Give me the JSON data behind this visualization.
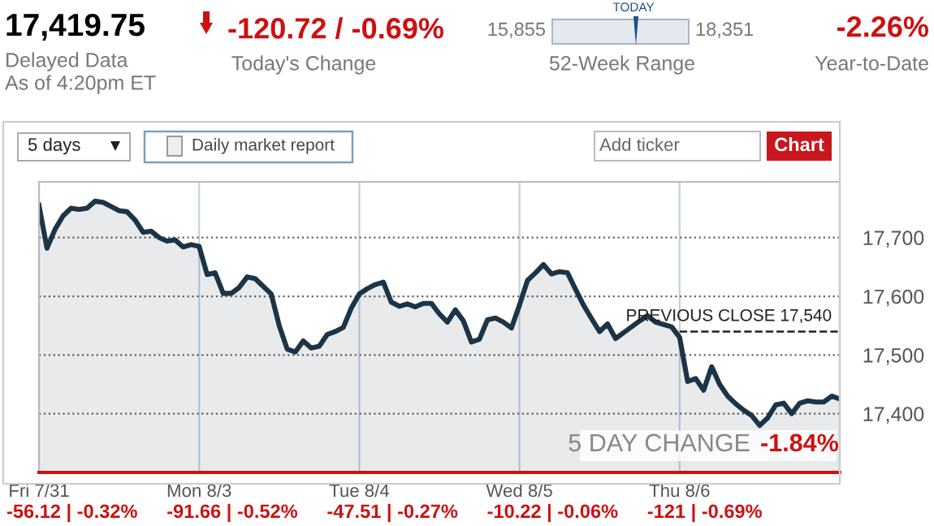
{
  "chart_data": {
    "type": "area",
    "title": "17,419.75",
    "categories": [
      "Fri 7/31",
      null,
      null,
      null,
      null,
      null,
      null,
      null,
      null,
      null,
      null,
      null,
      null,
      null,
      null,
      null,
      null,
      null,
      null,
      null,
      "Mon 8/3",
      null,
      null,
      null,
      null,
      null,
      null,
      null,
      null,
      null,
      null,
      null,
      null,
      null,
      null,
      null,
      null,
      null,
      null,
      null,
      "Tue 8/4",
      null,
      null,
      null,
      null,
      null,
      null,
      null,
      null,
      null,
      null,
      null,
      null,
      null,
      null,
      null,
      null,
      null,
      null,
      null,
      "Wed 8/5",
      null,
      null,
      null,
      null,
      null,
      null,
      null,
      null,
      null,
      null,
      null,
      null,
      null,
      null,
      null,
      null,
      null,
      null,
      null,
      "Thu 8/6",
      null,
      null,
      null,
      null,
      null,
      null,
      null,
      null,
      null,
      null,
      null,
      null,
      null,
      null,
      null,
      null,
      null,
      null,
      null,
      null
    ],
    "series": [
      {
        "color": "#1b3447",
        "values": [
          17755,
          17682,
          17714,
          17737,
          17750,
          17748,
          17750,
          17762,
          17760,
          17753,
          17746,
          17744,
          17730,
          17709,
          17711,
          17700,
          17694,
          17696,
          17684,
          17688,
          17685,
          17637,
          17640,
          17605,
          17605,
          17615,
          17633,
          17630,
          17617,
          17604,
          17550,
          17510,
          17505,
          17524,
          17512,
          17515,
          17535,
          17540,
          17547,
          17580,
          17604,
          17613,
          17620,
          17624,
          17590,
          17583,
          17587,
          17582,
          17588,
          17588,
          17570,
          17556,
          17577,
          17558,
          17522,
          17527,
          17560,
          17563,
          17556,
          17546,
          17585,
          17627,
          17640,
          17654,
          17638,
          17642,
          17640,
          17612,
          17585,
          17562,
          17540,
          17553,
          17528,
          17538,
          17548,
          17558,
          17567,
          17556,
          17552,
          17548,
          17530,
          17455,
          17460,
          17440,
          17480,
          17450,
          17430,
          17417,
          17406,
          17397,
          17380,
          17393,
          17415,
          17418,
          17400,
          17418,
          17422,
          17420,
          17420,
          17430,
          17425
        ]
      }
    ],
    "ylim": [
      17300,
      17795
    ],
    "yticks": [
      {
        "value": 17400,
        "label": "17,400"
      },
      {
        "value": 17500,
        "label": "17,500"
      },
      {
        "value": 17600,
        "label": "17,600"
      },
      {
        "value": 17700,
        "label": "17,700"
      }
    ],
    "grid": true,
    "legend": false,
    "line_style": "solid",
    "marker": "none",
    "ref_lines": [
      {
        "axis": "y",
        "value": 17540,
        "label": "PREVIOUS CLOSE 17,540",
        "color": "#222222",
        "line_style": "dashed"
      }
    ],
    "annotations": [
      "-56.12 | -0.32%",
      "-91.66 | -0.52%",
      "-47.51 | -0.27%",
      "-10.22 | -0.06%",
      "-121 | -0.69%",
      "Delayed Data",
      "As of 4:20pm ET",
      "-120.72 / -0.69%",
      "Today's Change",
      "15,855",
      "18,351",
      "TODAY",
      "52-Week Range",
      "-2.26%",
      "Year-to-Date",
      "5 days",
      "Daily market report",
      "Add ticker",
      "Chart",
      "5 DAY CHANGE",
      "-1.84%"
    ]
  }
}
